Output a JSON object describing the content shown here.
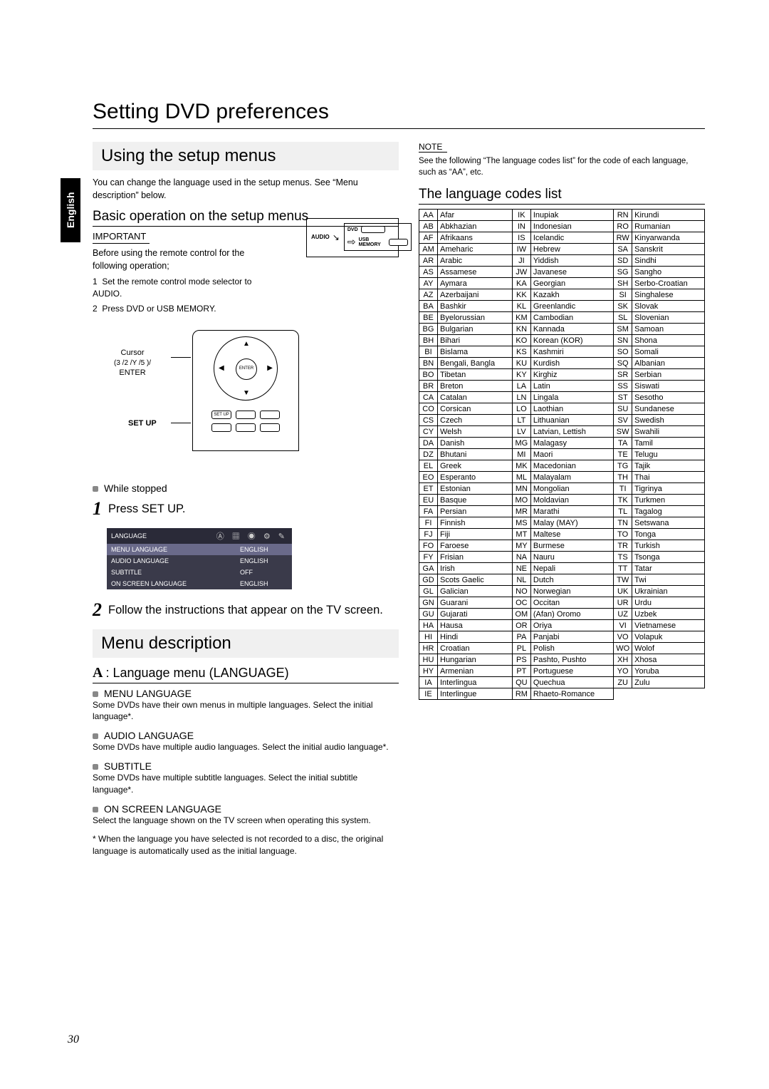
{
  "sidebar_label": "English",
  "page_title": "Setting DVD preferences",
  "left": {
    "using_head": "Using the setup menus",
    "using_body": "You can change the language used in the setup menus. See “Menu description” below.",
    "basic_head": "Basic operation on the setup menus",
    "important": "IMPORTANT",
    "imp_line1": "Before using the remote control for the following operation;",
    "imp_li1": "Set the remote control mode selector to AUDIO.",
    "imp_li2": "Press DVD or USB MEMORY.",
    "mode_labels": {
      "audio": "AUDIO",
      "dvd": "DVD",
      "usb": "USB MEMORY"
    },
    "cursor_label_l1": "Cursor",
    "cursor_label_l2": "(3 /2 /Y /5 )/",
    "cursor_label_l3": "ENTER",
    "setup_label": "SET UP",
    "enter_btn": "ENTER",
    "setup_btn": "SET UP",
    "pre_step1": "While stopped",
    "step1": "Press SET UP.",
    "osd_title": "LANGUAGE",
    "osd_rows": [
      [
        "MENU LANGUAGE",
        "ENGLISH"
      ],
      [
        "AUDIO LANGUAGE",
        "ENGLISH"
      ],
      [
        "SUBTITLE",
        "OFF"
      ],
      [
        "ON SCREEN LANGUAGE",
        "ENGLISH"
      ]
    ],
    "step2": "Follow the instructions that appear on the TV screen.",
    "menu_desc_head": "Menu description",
    "lang_menu_head": ": Language menu (LANGUAGE)",
    "items": [
      {
        "t": "MENU LANGUAGE",
        "b": "Some DVDs have their own menus in multiple languages. Select the initial language*.",
        "indent": false
      },
      {
        "t": "AUDIO LANGUAGE",
        "b": "Some DVDs have multiple audio languages. Select the initial audio language*.",
        "indent": true
      },
      {
        "t": "SUBTITLE",
        "b": "Some DVDs have multiple subtitle languages. Select the initial subtitle language*.",
        "indent": true
      },
      {
        "t": "ON SCREEN LANGUAGE",
        "b": "Select the language shown on the TV screen when operating this system.",
        "indent": false
      }
    ],
    "footnote": "* When the language you have selected is not recorded to a disc, the original language is automatically used as the initial language."
  },
  "right": {
    "note_head": "NOTE",
    "note_body": "See the following “The language codes list” for the code of each language, such as “AA”, etc.",
    "list_head": "The language codes list",
    "cols": [
      [
        [
          "AA",
          "Afar"
        ],
        [
          "AB",
          "Abkhazian"
        ],
        [
          "AF",
          "Afrikaans"
        ],
        [
          "AM",
          "Ameharic"
        ],
        [
          "AR",
          "Arabic"
        ],
        [
          "AS",
          "Assamese"
        ],
        [
          "AY",
          "Aymara"
        ],
        [
          "AZ",
          "Azerbaijani"
        ],
        [
          "BA",
          "Bashkir"
        ],
        [
          "BE",
          "Byelorussian"
        ],
        [
          "BG",
          "Bulgarian"
        ],
        [
          "BH",
          "Bihari"
        ],
        [
          "BI",
          "Bislama"
        ],
        [
          "BN",
          "Bengali, Bangla"
        ],
        [
          "BO",
          "Tibetan"
        ],
        [
          "BR",
          "Breton"
        ],
        [
          "CA",
          "Catalan"
        ],
        [
          "CO",
          "Corsican"
        ],
        [
          "CS",
          "Czech"
        ],
        [
          "CY",
          "Welsh"
        ],
        [
          "DA",
          "Danish"
        ],
        [
          "DZ",
          "Bhutani"
        ],
        [
          "EL",
          "Greek"
        ],
        [
          "EO",
          "Esperanto"
        ],
        [
          "ET",
          "Estonian"
        ],
        [
          "EU",
          "Basque"
        ],
        [
          "FA",
          "Persian"
        ],
        [
          "FI",
          "Finnish"
        ],
        [
          "FJ",
          "Fiji"
        ],
        [
          "FO",
          "Faroese"
        ],
        [
          "FY",
          "Frisian"
        ],
        [
          "GA",
          "Irish"
        ],
        [
          "GD",
          "Scots Gaelic"
        ],
        [
          "GL",
          "Galician"
        ],
        [
          "GN",
          "Guarani"
        ],
        [
          "GU",
          "Gujarati"
        ],
        [
          "HA",
          "Hausa"
        ],
        [
          "HI",
          "Hindi"
        ],
        [
          "HR",
          "Croatian"
        ],
        [
          "HU",
          "Hungarian"
        ],
        [
          "HY",
          "Armenian"
        ],
        [
          "IA",
          "Interlingua"
        ],
        [
          "IE",
          "Interlingue"
        ]
      ],
      [
        [
          "IK",
          "Inupiak"
        ],
        [
          "IN",
          "Indonesian"
        ],
        [
          "IS",
          "Icelandic"
        ],
        [
          "IW",
          "Hebrew"
        ],
        [
          "JI",
          "Yiddish"
        ],
        [
          "JW",
          "Javanese"
        ],
        [
          "KA",
          "Georgian"
        ],
        [
          "KK",
          "Kazakh"
        ],
        [
          "KL",
          "Greenlandic"
        ],
        [
          "KM",
          "Cambodian"
        ],
        [
          "KN",
          "Kannada"
        ],
        [
          "KO",
          "Korean (KOR)"
        ],
        [
          "KS",
          "Kashmiri"
        ],
        [
          "KU",
          "Kurdish"
        ],
        [
          "KY",
          "Kirghiz"
        ],
        [
          "LA",
          "Latin"
        ],
        [
          "LN",
          "Lingala"
        ],
        [
          "LO",
          "Laothian"
        ],
        [
          "LT",
          "Lithuanian"
        ],
        [
          "LV",
          "Latvian, Lettish"
        ],
        [
          "MG",
          "Malagasy"
        ],
        [
          "MI",
          "Maori"
        ],
        [
          "MK",
          "Macedonian"
        ],
        [
          "ML",
          "Malayalam"
        ],
        [
          "MN",
          "Mongolian"
        ],
        [
          "MO",
          "Moldavian"
        ],
        [
          "MR",
          "Marathi"
        ],
        [
          "MS",
          "Malay (MAY)"
        ],
        [
          "MT",
          "Maltese"
        ],
        [
          "MY",
          "Burmese"
        ],
        [
          "NA",
          "Nauru"
        ],
        [
          "NE",
          "Nepali"
        ],
        [
          "NL",
          "Dutch"
        ],
        [
          "NO",
          "Norwegian"
        ],
        [
          "OC",
          "Occitan"
        ],
        [
          "OM",
          "(Afan) Oromo"
        ],
        [
          "OR",
          "Oriya"
        ],
        [
          "PA",
          "Panjabi"
        ],
        [
          "PL",
          "Polish"
        ],
        [
          "PS",
          "Pashto, Pushto"
        ],
        [
          "PT",
          "Portuguese"
        ],
        [
          "QU",
          "Quechua"
        ],
        [
          "RM",
          "Rhaeto-Romance"
        ]
      ],
      [
        [
          "RN",
          "Kirundi"
        ],
        [
          "RO",
          "Rumanian"
        ],
        [
          "RW",
          "Kinyarwanda"
        ],
        [
          "SA",
          "Sanskrit"
        ],
        [
          "SD",
          "Sindhi"
        ],
        [
          "SG",
          "Sangho"
        ],
        [
          "SH",
          "Serbo-Croatian"
        ],
        [
          "SI",
          "Singhalese"
        ],
        [
          "SK",
          "Slovak"
        ],
        [
          "SL",
          "Slovenian"
        ],
        [
          "SM",
          "Samoan"
        ],
        [
          "SN",
          "Shona"
        ],
        [
          "SO",
          "Somali"
        ],
        [
          "SQ",
          "Albanian"
        ],
        [
          "SR",
          "Serbian"
        ],
        [
          "SS",
          "Siswati"
        ],
        [
          "ST",
          "Sesotho"
        ],
        [
          "SU",
          "Sundanese"
        ],
        [
          "SV",
          "Swedish"
        ],
        [
          "SW",
          "Swahili"
        ],
        [
          "TA",
          "Tamil"
        ],
        [
          "TE",
          "Telugu"
        ],
        [
          "TG",
          "Tajik"
        ],
        [
          "TH",
          "Thai"
        ],
        [
          "TI",
          "Tigrinya"
        ],
        [
          "TK",
          "Turkmen"
        ],
        [
          "TL",
          "Tagalog"
        ],
        [
          "TN",
          "Setswana"
        ],
        [
          "TO",
          "Tonga"
        ],
        [
          "TR",
          "Turkish"
        ],
        [
          "TS",
          "Tsonga"
        ],
        [
          "TT",
          "Tatar"
        ],
        [
          "TW",
          "Twi"
        ],
        [
          "UK",
          "Ukrainian"
        ],
        [
          "UR",
          "Urdu"
        ],
        [
          "UZ",
          "Uzbek"
        ],
        [
          "VI",
          "Vietnamese"
        ],
        [
          "VO",
          "Volapuk"
        ],
        [
          "WO",
          "Wolof"
        ],
        [
          "XH",
          "Xhosa"
        ],
        [
          "YO",
          "Yoruba"
        ],
        [
          "ZU",
          "Zulu"
        ]
      ]
    ]
  },
  "page_number": "30"
}
